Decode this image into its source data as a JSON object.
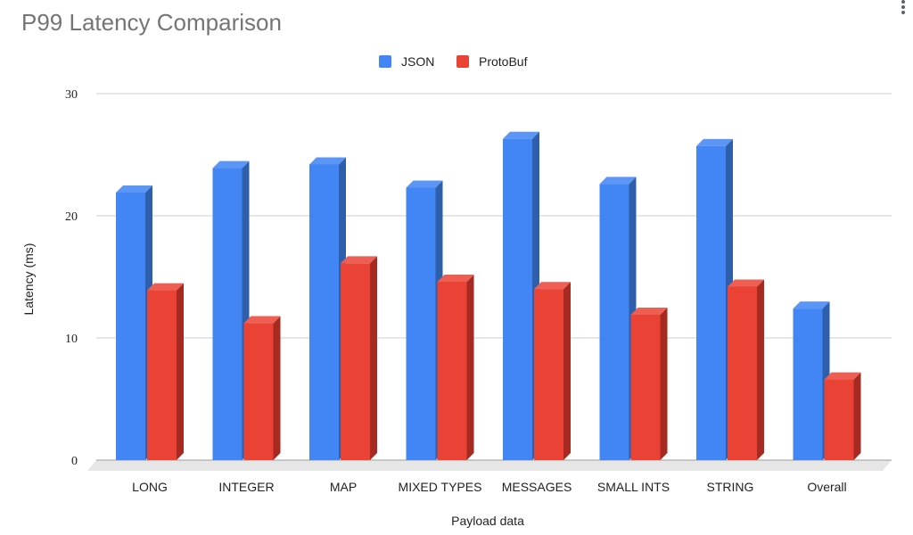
{
  "header": {
    "title": "P99 Latency Comparison"
  },
  "chart_data": {
    "type": "bar",
    "title": "P99 Latency Comparison",
    "xlabel": "Payload data",
    "ylabel": "Latency (ms)",
    "ylim": [
      0,
      30
    ],
    "yticks": [
      0,
      10,
      20,
      30
    ],
    "grid": true,
    "legend_position": "top",
    "style": "3d",
    "categories": [
      "LONG",
      "INTEGER",
      "MAP",
      "MIXED TYPES",
      "MESSAGES",
      "SMALL INTS",
      "STRING",
      "Overall"
    ],
    "series": [
      {
        "name": "JSON",
        "color": "#4285f4",
        "side_color": "#2f5fab",
        "top_color": "#5b95f5",
        "values": [
          21.9,
          23.9,
          24.2,
          22.3,
          26.3,
          22.6,
          25.7,
          12.4
        ]
      },
      {
        "name": "ProtoBuf",
        "color": "#ea4335",
        "side_color": "#a52a21",
        "top_color": "#ef5e52",
        "values": [
          13.9,
          11.2,
          16.1,
          14.6,
          14.0,
          11.9,
          14.2,
          6.6
        ]
      }
    ]
  }
}
